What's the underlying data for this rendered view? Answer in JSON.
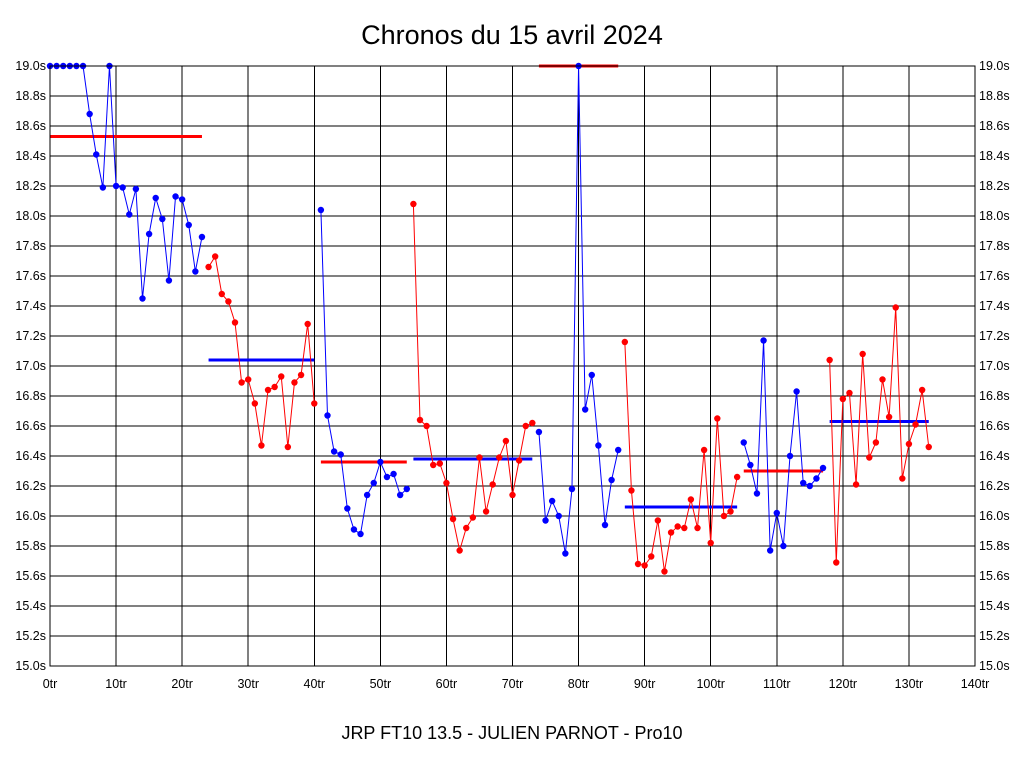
{
  "chart_data": {
    "type": "line",
    "title": "Chronos du 15 avril 2024",
    "footer": "JRP FT10 13.5 - JULIEN PARNOT - Pro10",
    "xlim": [
      0,
      140
    ],
    "ylim": [
      15.0,
      19.0
    ],
    "x_ticks": [
      0,
      10,
      20,
      30,
      40,
      50,
      60,
      70,
      80,
      90,
      100,
      110,
      120,
      130,
      140
    ],
    "x_tick_labels": [
      "0tr",
      "10tr",
      "20tr",
      "30tr",
      "40tr",
      "50tr",
      "60tr",
      "70tr",
      "80tr",
      "90tr",
      "100tr",
      "110tr",
      "120tr",
      "130tr",
      "140tr"
    ],
    "y_ticks": [
      15.0,
      15.2,
      15.4,
      15.6,
      15.8,
      16.0,
      16.2,
      16.4,
      16.6,
      16.8,
      17.0,
      17.2,
      17.4,
      17.6,
      17.8,
      18.0,
      18.2,
      18.4,
      18.6,
      18.8,
      19.0
    ],
    "y_tick_labels": [
      "15.0s",
      "15.2s",
      "15.4s",
      "15.6s",
      "15.8s",
      "16.0s",
      "16.2s",
      "16.4s",
      "16.6s",
      "16.8s",
      "17.0s",
      "17.2s",
      "17.4s",
      "17.6s",
      "17.8s",
      "18.0s",
      "18.2s",
      "18.4s",
      "18.6s",
      "18.8s",
      "19.0s"
    ],
    "grid": true,
    "colors": {
      "blue": "#0000ff",
      "red": "#ff0000"
    },
    "series": [
      {
        "color": "#0000ff",
        "x": [
          0,
          1,
          2,
          3,
          4,
          5,
          6,
          7,
          8,
          9,
          10,
          11,
          12,
          13,
          14,
          15,
          16,
          17,
          18,
          19,
          20,
          21,
          22,
          23
        ],
        "y": [
          19.0,
          19.0,
          19.0,
          19.0,
          19.0,
          19.0,
          18.68,
          18.41,
          18.19,
          19.0,
          18.2,
          18.19,
          18.01,
          18.18,
          17.45,
          17.88,
          18.12,
          17.98,
          17.57,
          18.13,
          18.11,
          17.94,
          17.63,
          17.86
        ]
      },
      {
        "color": "#ff0000",
        "x": [
          24,
          25,
          26,
          27,
          28,
          29,
          30,
          31,
          32,
          33,
          34,
          35,
          36,
          37,
          38,
          39,
          40
        ],
        "y": [
          17.66,
          17.73,
          17.48,
          17.43,
          17.29,
          16.89,
          16.91,
          16.75,
          16.47,
          16.84,
          16.86,
          16.93,
          16.46,
          16.89,
          16.94,
          17.28,
          16.75
        ]
      },
      {
        "color": "#0000ff",
        "x": [
          41,
          42,
          43,
          44,
          45,
          46,
          47,
          48,
          49,
          50,
          51,
          52,
          53,
          54
        ],
        "y": [
          18.04,
          16.67,
          16.43,
          16.41,
          16.05,
          15.91,
          15.88,
          16.14,
          16.22,
          16.36,
          16.26,
          16.28,
          16.14,
          16.18
        ]
      },
      {
        "color": "#ff0000",
        "x": [
          55,
          56,
          57,
          58,
          59,
          60,
          61,
          62,
          63,
          64,
          65,
          66,
          67,
          68,
          69,
          70,
          71,
          72,
          73
        ],
        "y": [
          18.08,
          16.64,
          16.6,
          16.34,
          16.35,
          16.22,
          15.98,
          15.77,
          15.92,
          15.99,
          16.39,
          16.03,
          16.21,
          16.39,
          16.5,
          16.14,
          16.37,
          16.6,
          16.62
        ]
      },
      {
        "color": "#0000ff",
        "x": [
          74,
          75,
          76,
          77,
          78,
          79,
          80,
          81,
          82,
          83,
          84,
          85,
          86
        ],
        "y": [
          16.56,
          15.97,
          16.1,
          16.0,
          15.75,
          16.18,
          19.0,
          16.71,
          16.94,
          16.47,
          15.94,
          16.24,
          16.44
        ]
      },
      {
        "color": "#ff0000",
        "x": [
          87,
          88,
          89,
          90,
          91,
          92,
          93,
          94,
          95,
          96,
          97,
          98,
          99,
          100,
          101,
          102,
          103,
          104
        ],
        "y": [
          17.16,
          16.17,
          15.68,
          15.67,
          15.73,
          15.97,
          15.63,
          15.89,
          15.93,
          15.92,
          16.11,
          15.92,
          16.44,
          15.82,
          16.65,
          16.0,
          16.03,
          16.26
        ]
      },
      {
        "color": "#0000ff",
        "x": [
          105,
          106,
          107,
          108,
          109,
          110,
          111,
          112,
          113,
          114,
          115,
          116,
          117
        ],
        "y": [
          16.49,
          16.34,
          16.15,
          17.17,
          15.77,
          16.02,
          15.8,
          16.4,
          16.83,
          16.22,
          16.2,
          16.25,
          16.32
        ]
      },
      {
        "color": "#ff0000",
        "x": [
          118,
          119,
          120,
          121,
          122,
          123,
          124,
          125,
          126,
          127,
          128,
          129,
          130,
          131,
          132,
          133
        ],
        "y": [
          17.04,
          15.69,
          16.78,
          16.82,
          16.21,
          17.08,
          16.39,
          16.49,
          16.91,
          16.66,
          17.39,
          16.25,
          16.48,
          16.61,
          16.84,
          16.46
        ]
      }
    ],
    "average_lines": [
      {
        "color": "#ff0000",
        "x": [
          0,
          23
        ],
        "y": 18.53
      },
      {
        "color": "#0000ff",
        "x": [
          24,
          40
        ],
        "y": 17.04
      },
      {
        "color": "#ff0000",
        "x": [
          41,
          54
        ],
        "y": 16.36
      },
      {
        "color": "#0000ff",
        "x": [
          55,
          73
        ],
        "y": 16.38
      },
      {
        "color": "#ff0000",
        "x": [
          74,
          86
        ],
        "y": 19.0
      },
      {
        "color": "#0000ff",
        "x": [
          87,
          104
        ],
        "y": 16.06
      },
      {
        "color": "#ff0000",
        "x": [
          105,
          117
        ],
        "y": 16.3
      },
      {
        "color": "#0000ff",
        "x": [
          118,
          133
        ],
        "y": 16.63
      }
    ]
  }
}
